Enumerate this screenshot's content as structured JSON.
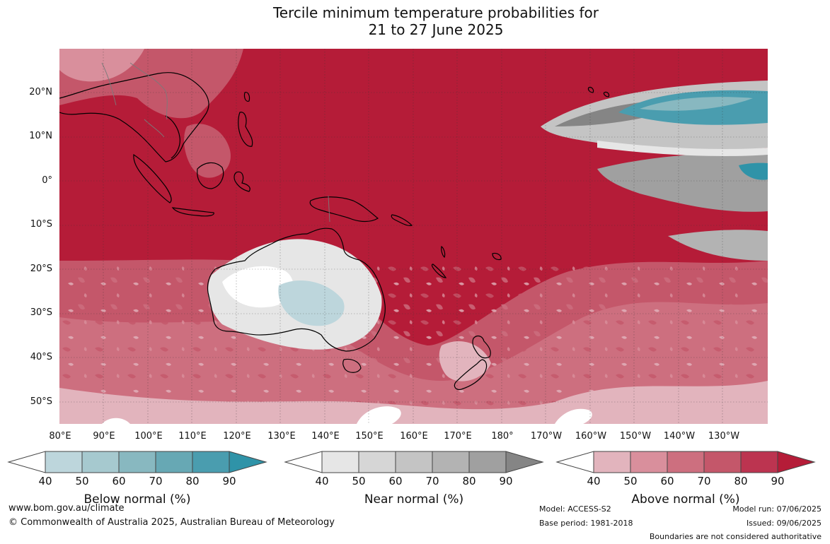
{
  "title": {
    "line1": "Tercile minimum temperature probabilities for",
    "line2": "21 to 27 June 2025"
  },
  "map": {
    "lat_labels": [
      "20°N",
      "10°N",
      "0°",
      "10°S",
      "20°S",
      "30°S",
      "40°S",
      "50°S"
    ],
    "lon_labels": [
      "80°E",
      "90°E",
      "100°E",
      "110°E",
      "120°E",
      "130°E",
      "140°E",
      "150°E",
      "160°E",
      "170°E",
      "180°",
      "170°W",
      "160°W",
      "150°W",
      "140°W",
      "130°W"
    ],
    "dominant_category": "Above normal",
    "ocean_color": "#b51c38",
    "land_outline_color": "#000000",
    "grid": true
  },
  "colorbars": [
    {
      "title": "Below normal (%)",
      "ticks": [
        "40",
        "50",
        "60",
        "70",
        "80",
        "90"
      ],
      "colors": [
        "#ffffff",
        "#bdd6dc",
        "#a6c9cf",
        "#88b8c0",
        "#67a8b4",
        "#4a9daf",
        "#2f93a8"
      ]
    },
    {
      "title": "Near normal (%)",
      "ticks": [
        "40",
        "50",
        "60",
        "70",
        "80",
        "90"
      ],
      "colors": [
        "#ffffff",
        "#e6e6e6",
        "#d6d6d6",
        "#c4c4c4",
        "#b3b3b3",
        "#a0a0a0",
        "#858585"
      ]
    },
    {
      "title": "Above normal (%)",
      "ticks": [
        "40",
        "50",
        "60",
        "70",
        "80",
        "90"
      ],
      "colors": [
        "#ffffff",
        "#e2b4bd",
        "#d98f9c",
        "#cd6f7f",
        "#c4576a",
        "#bc3450",
        "#b51c38"
      ]
    }
  ],
  "footer": {
    "website": "www.bom.gov.au/climate",
    "copyright": "© Commonwealth of Australia 2025, Australian Bureau of Meteorology",
    "model": "Model: ACCESS-S2",
    "base_period": "Base period: 1981-2018",
    "model_run": "Model run: 07/06/2025",
    "issued": "Issued: 09/06/2025",
    "disclaimer": "Boundaries are not considered authoritative"
  }
}
